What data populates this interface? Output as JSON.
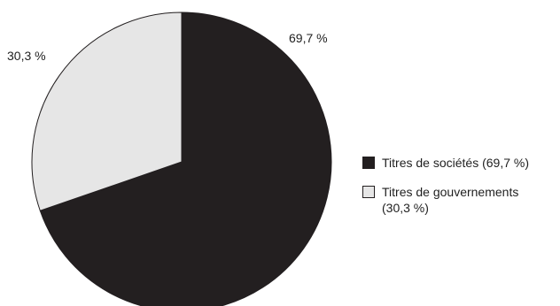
{
  "chart_data": {
    "type": "pie",
    "categories": [
      "Titres de sociétés",
      "Titres de gouvernements"
    ],
    "values": [
      69.7,
      30.3
    ],
    "colors": [
      "#231f20",
      "#e6e6e6"
    ],
    "slice_labels": [
      "69,7 %",
      "30,3 %"
    ],
    "legend": {
      "placement": "right",
      "entries": [
        {
          "lines": [
            "Titres de sociétés (69,7 %)"
          ],
          "color": "#231f20"
        },
        {
          "lines": [
            "Titres de gouvernements",
            "(30,3 %)"
          ],
          "color": "#e6e6e6"
        }
      ]
    },
    "start_angle_deg": 0,
    "direction": "clockwise"
  }
}
